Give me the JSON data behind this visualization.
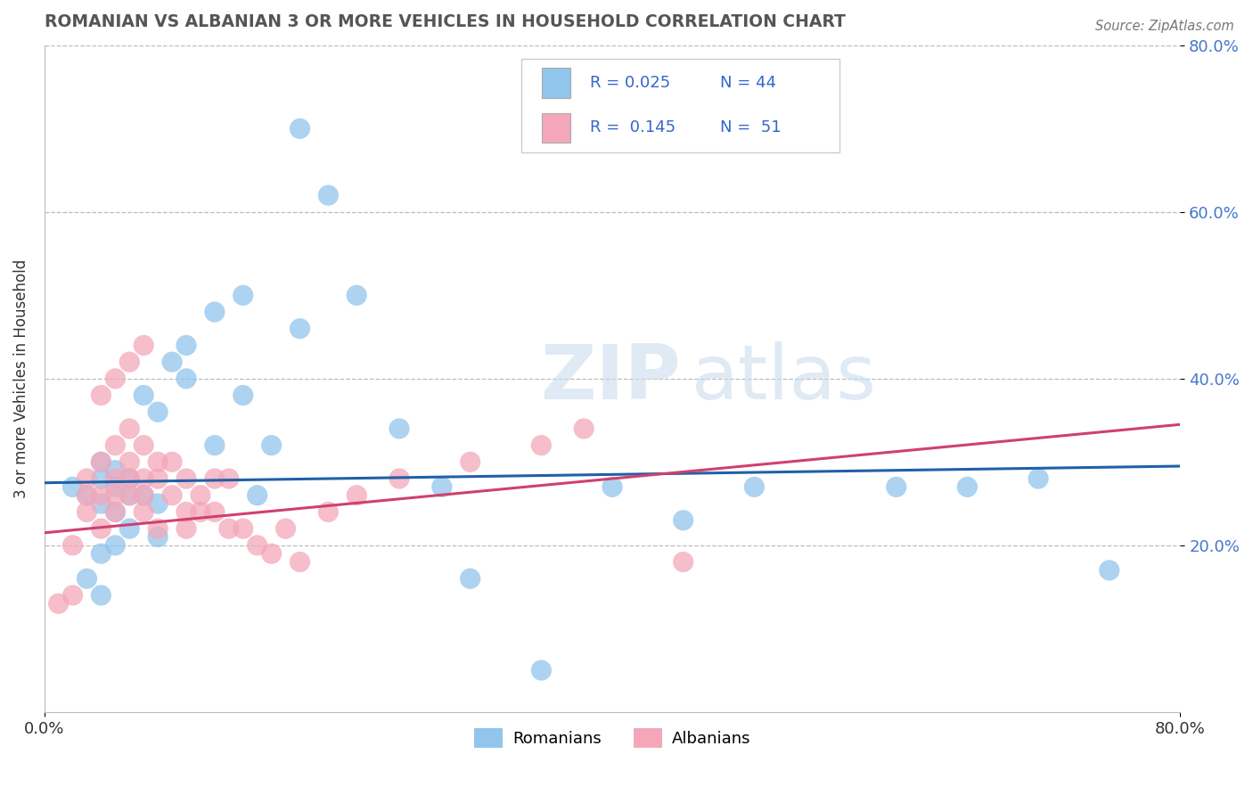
{
  "title": "ROMANIAN VS ALBANIAN 3 OR MORE VEHICLES IN HOUSEHOLD CORRELATION CHART",
  "source": "Source: ZipAtlas.com",
  "ylabel": "3 or more Vehicles in Household",
  "legend_label1": "Romanians",
  "legend_label2": "Albanians",
  "R_romanian": 0.025,
  "N_romanian": 44,
  "R_albanian": 0.145,
  "N_albanian": 51,
  "watermark_zip": "ZIP",
  "watermark_atlas": "atlas",
  "xmin": 0.0,
  "xmax": 0.8,
  "ymin": 0.0,
  "ymax": 0.8,
  "yticks": [
    0.2,
    0.4,
    0.6,
    0.8
  ],
  "ytick_labels": [
    "20.0%",
    "40.0%",
    "60.0%",
    "80.0%"
  ],
  "color_romanian": "#92C5EC",
  "color_albanian": "#F4A7B9",
  "trendline_color_romanian": "#2060A8",
  "trendline_color_albanian": "#D04070",
  "rom_trend_x0": 0.0,
  "rom_trend_y0": 0.275,
  "rom_trend_x1": 0.8,
  "rom_trend_y1": 0.295,
  "alb_trend_x0": 0.0,
  "alb_trend_y0": 0.215,
  "alb_trend_x1": 0.8,
  "alb_trend_y1": 0.345,
  "romanian_x": [
    0.02,
    0.03,
    0.04,
    0.05,
    0.04,
    0.06,
    0.05,
    0.04,
    0.05,
    0.06,
    0.07,
    0.08,
    0.07,
    0.08,
    0.09,
    0.1,
    0.12,
    0.1,
    0.12,
    0.14,
    0.16,
    0.14,
    0.18,
    0.4,
    0.5,
    0.6,
    0.65,
    0.7,
    0.75,
    0.28,
    0.3,
    0.2,
    0.22,
    0.25,
    0.18,
    0.15,
    0.08,
    0.06,
    0.05,
    0.04,
    0.03,
    0.04,
    0.35,
    0.45
  ],
  "romanian_y": [
    0.27,
    0.26,
    0.25,
    0.24,
    0.28,
    0.26,
    0.29,
    0.3,
    0.27,
    0.28,
    0.26,
    0.25,
    0.38,
    0.36,
    0.42,
    0.4,
    0.32,
    0.44,
    0.48,
    0.38,
    0.32,
    0.5,
    0.46,
    0.27,
    0.27,
    0.27,
    0.27,
    0.28,
    0.17,
    0.27,
    0.16,
    0.62,
    0.5,
    0.34,
    0.7,
    0.26,
    0.21,
    0.22,
    0.2,
    0.19,
    0.16,
    0.14,
    0.05,
    0.23
  ],
  "albanian_x": [
    0.01,
    0.02,
    0.02,
    0.03,
    0.03,
    0.03,
    0.04,
    0.04,
    0.04,
    0.05,
    0.05,
    0.05,
    0.05,
    0.06,
    0.06,
    0.06,
    0.06,
    0.07,
    0.07,
    0.07,
    0.07,
    0.08,
    0.08,
    0.08,
    0.09,
    0.09,
    0.1,
    0.1,
    0.1,
    0.11,
    0.11,
    0.12,
    0.12,
    0.13,
    0.13,
    0.14,
    0.15,
    0.16,
    0.17,
    0.18,
    0.2,
    0.22,
    0.25,
    0.3,
    0.35,
    0.38,
    0.04,
    0.05,
    0.06,
    0.07,
    0.45
  ],
  "albanian_y": [
    0.13,
    0.14,
    0.2,
    0.26,
    0.24,
    0.28,
    0.26,
    0.22,
    0.3,
    0.28,
    0.26,
    0.32,
    0.24,
    0.28,
    0.26,
    0.3,
    0.34,
    0.28,
    0.32,
    0.26,
    0.24,
    0.28,
    0.3,
    0.22,
    0.26,
    0.3,
    0.28,
    0.24,
    0.22,
    0.26,
    0.24,
    0.24,
    0.28,
    0.22,
    0.28,
    0.22,
    0.2,
    0.19,
    0.22,
    0.18,
    0.24,
    0.26,
    0.28,
    0.3,
    0.32,
    0.34,
    0.38,
    0.4,
    0.42,
    0.44,
    0.18
  ]
}
